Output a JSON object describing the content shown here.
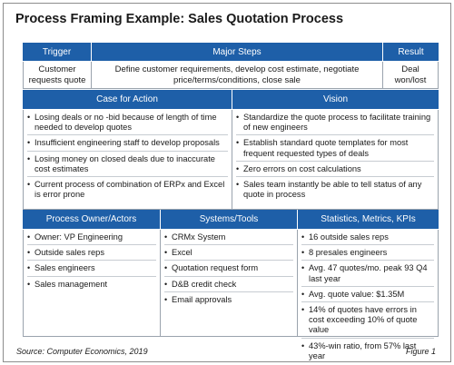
{
  "title": "Process Framing Example: Sales Quotation Process",
  "colors": {
    "header_bg": "#1e5fa8",
    "header_text": "#ffffff",
    "border": "#9aa3ad"
  },
  "row1": {
    "headers": [
      "Trigger",
      "Major Steps",
      "Result"
    ],
    "cells": [
      "Customer requests quote",
      "Define customer requirements, develop cost estimate, negotiate price/terms/conditions, close sale",
      "Deal won/lost"
    ]
  },
  "case_for_action": {
    "header": "Case for Action",
    "items": [
      "Losing deals or no -bid because of length of time needed to develop quotes",
      "Insufficient engineering staff to develop proposals",
      "Losing money on closed deals due to inaccurate cost estimates",
      "Current process of combination of ERPx and Excel is error prone"
    ]
  },
  "vision": {
    "header": "Vision",
    "items": [
      "Standardize the quote process to facilitate training of new engineers",
      "Establish standard quote templates for most frequent requested types of deals",
      "Zero errors on cost calculations",
      "Sales team instantly be able to tell status of any quote in process"
    ]
  },
  "process_owner": {
    "header": "Process Owner/Actors",
    "items": [
      "Owner: VP Engineering",
      "Outside sales reps",
      "Sales engineers",
      "Sales management"
    ]
  },
  "systems_tools": {
    "header": "Systems/Tools",
    "items": [
      "CRMx System",
      "Excel",
      "Quotation request form",
      "D&B credit check",
      "Email approvals"
    ]
  },
  "statistics": {
    "header": "Statistics, Metrics, KPIs",
    "items": [
      "16 outside sales reps",
      "8 presales engineers",
      "Avg. 47 quotes/mo. peak 93 Q4 last year",
      "Avg. quote value: $1.35M",
      "14% of quotes have errors in cost exceeding 10% of quote value",
      "43%-win ratio, from 57% last year"
    ]
  },
  "footer": {
    "source": "Source: Computer Economics, 2019",
    "figure": "Figure 1"
  }
}
